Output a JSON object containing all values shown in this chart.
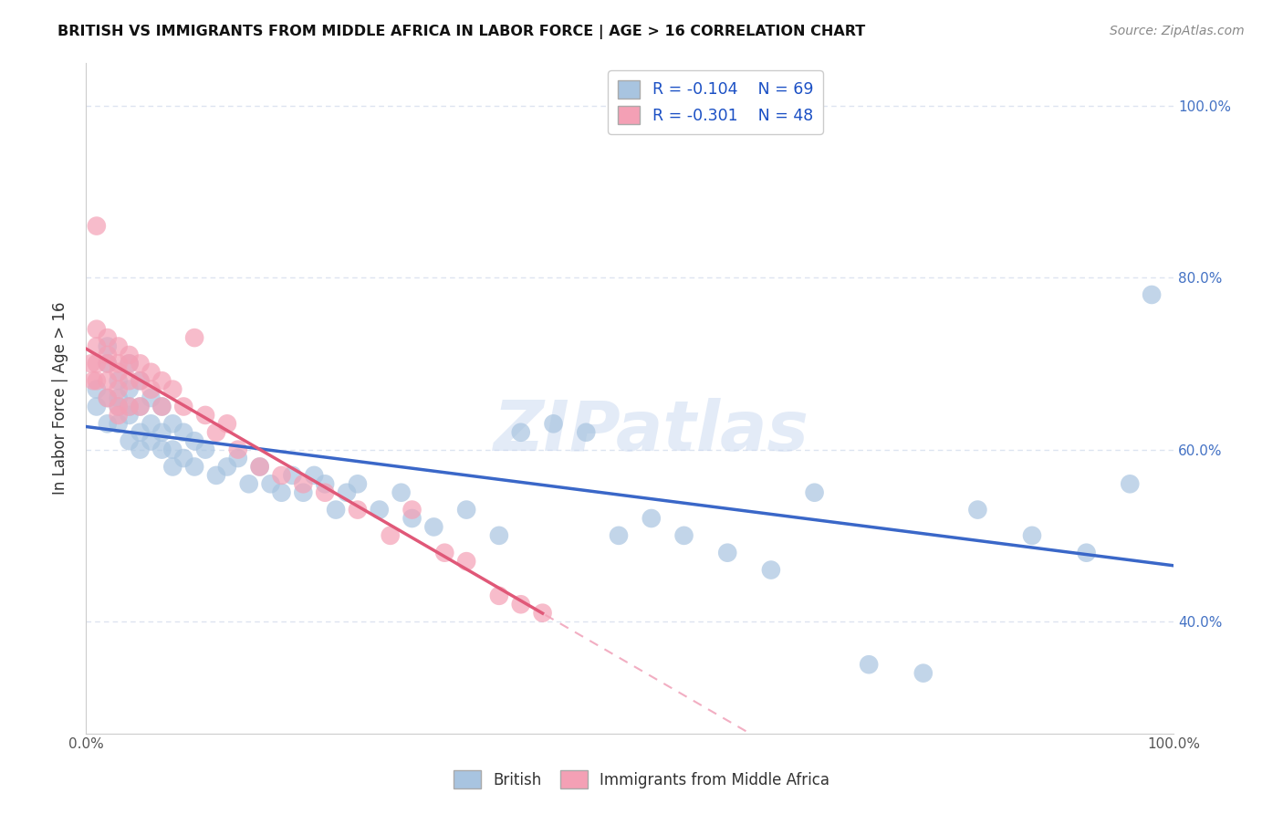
{
  "title": "BRITISH VS IMMIGRANTS FROM MIDDLE AFRICA IN LABOR FORCE | AGE > 16 CORRELATION CHART",
  "source_text": "Source: ZipAtlas.com",
  "ylabel": "In Labor Force | Age > 16",
  "xlim": [
    0.0,
    1.0
  ],
  "ylim": [
    0.27,
    1.05
  ],
  "ytick_labels_right": [
    "40.0%",
    "60.0%",
    "80.0%",
    "100.0%"
  ],
  "yticks_right": [
    0.4,
    0.6,
    0.8,
    1.0
  ],
  "british_R": -0.104,
  "british_N": 69,
  "immigrant_R": -0.301,
  "immigrant_N": 48,
  "british_color": "#a8c4e0",
  "immigrant_color": "#f4a0b5",
  "british_line_color": "#3a67c8",
  "immigrant_line_color": "#e05878",
  "diagonal_color": "#f0a0b8",
  "background_color": "#ffffff",
  "grid_color": "#dde4f0",
  "watermark": "ZIPatlas",
  "brit_intercept": 0.68,
  "brit_slope": -0.05,
  "imm_intercept": 0.75,
  "imm_slope": -0.6,
  "british_x": [
    0.01,
    0.01,
    0.02,
    0.02,
    0.02,
    0.02,
    0.03,
    0.03,
    0.03,
    0.03,
    0.04,
    0.04,
    0.04,
    0.04,
    0.04,
    0.05,
    0.05,
    0.05,
    0.05,
    0.06,
    0.06,
    0.06,
    0.07,
    0.07,
    0.07,
    0.08,
    0.08,
    0.08,
    0.09,
    0.09,
    0.1,
    0.1,
    0.11,
    0.12,
    0.13,
    0.14,
    0.15,
    0.16,
    0.17,
    0.18,
    0.19,
    0.2,
    0.21,
    0.22,
    0.23,
    0.24,
    0.25,
    0.27,
    0.29,
    0.3,
    0.32,
    0.35,
    0.38,
    0.4,
    0.43,
    0.46,
    0.49,
    0.52,
    0.55,
    0.59,
    0.63,
    0.67,
    0.72,
    0.77,
    0.82,
    0.87,
    0.92,
    0.96,
    0.98
  ],
  "british_y": [
    0.67,
    0.65,
    0.7,
    0.66,
    0.63,
    0.72,
    0.68,
    0.65,
    0.63,
    0.66,
    0.7,
    0.67,
    0.64,
    0.61,
    0.65,
    0.68,
    0.65,
    0.62,
    0.6,
    0.66,
    0.63,
    0.61,
    0.65,
    0.62,
    0.6,
    0.63,
    0.6,
    0.58,
    0.62,
    0.59,
    0.61,
    0.58,
    0.6,
    0.57,
    0.58,
    0.59,
    0.56,
    0.58,
    0.56,
    0.55,
    0.57,
    0.55,
    0.57,
    0.56,
    0.53,
    0.55,
    0.56,
    0.53,
    0.55,
    0.52,
    0.51,
    0.53,
    0.5,
    0.62,
    0.63,
    0.62,
    0.5,
    0.52,
    0.5,
    0.48,
    0.46,
    0.55,
    0.35,
    0.34,
    0.53,
    0.5,
    0.48,
    0.56,
    0.78
  ],
  "immigrant_x": [
    0.005,
    0.007,
    0.01,
    0.01,
    0.01,
    0.01,
    0.01,
    0.02,
    0.02,
    0.02,
    0.02,
    0.02,
    0.03,
    0.03,
    0.03,
    0.03,
    0.03,
    0.03,
    0.04,
    0.04,
    0.04,
    0.04,
    0.05,
    0.05,
    0.05,
    0.06,
    0.06,
    0.07,
    0.07,
    0.08,
    0.09,
    0.1,
    0.11,
    0.12,
    0.13,
    0.14,
    0.16,
    0.18,
    0.2,
    0.22,
    0.25,
    0.28,
    0.3,
    0.33,
    0.35,
    0.38,
    0.4,
    0.42
  ],
  "immigrant_y": [
    0.7,
    0.68,
    0.74,
    0.72,
    0.7,
    0.68,
    0.86,
    0.73,
    0.71,
    0.7,
    0.68,
    0.66,
    0.72,
    0.7,
    0.69,
    0.67,
    0.65,
    0.64,
    0.71,
    0.7,
    0.68,
    0.65,
    0.7,
    0.68,
    0.65,
    0.69,
    0.67,
    0.68,
    0.65,
    0.67,
    0.65,
    0.73,
    0.64,
    0.62,
    0.63,
    0.6,
    0.58,
    0.57,
    0.56,
    0.55,
    0.53,
    0.5,
    0.53,
    0.48,
    0.47,
    0.43,
    0.42,
    0.41
  ]
}
